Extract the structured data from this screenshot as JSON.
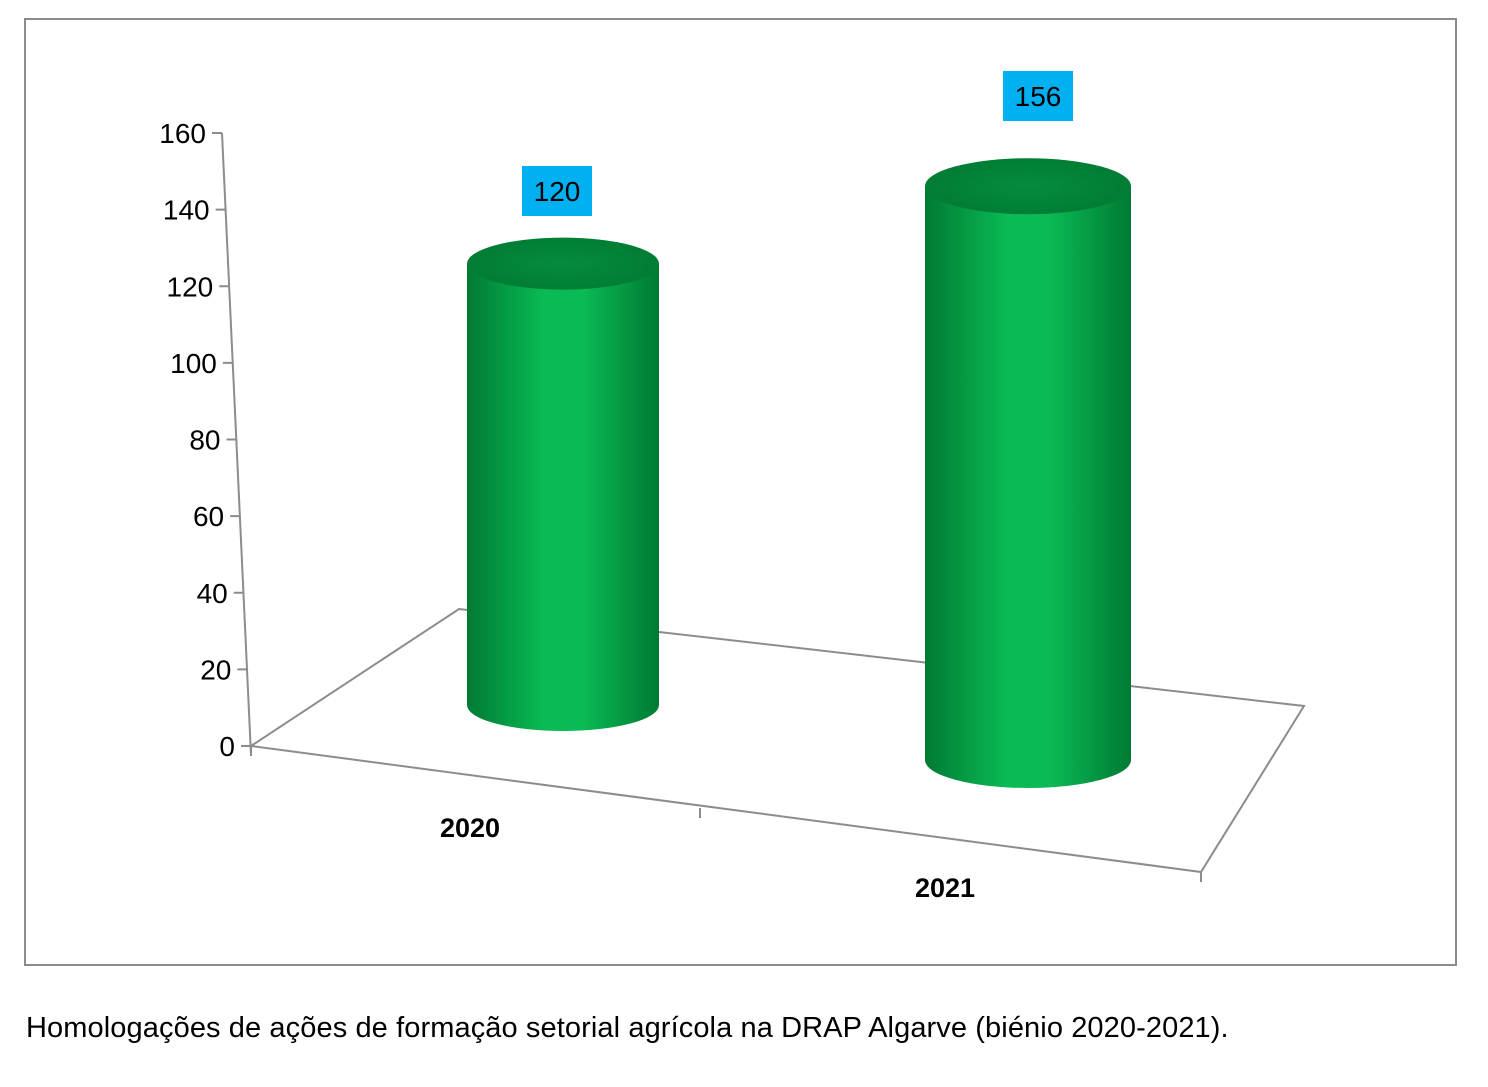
{
  "caption": "Homologações de ações de formação setorial agrícola na DRAP Algarve (biénio 2020-2021).",
  "colors": {
    "bar_light": "#0abb55",
    "bar_dark": "#007a33",
    "bar_top": "#058c3c",
    "label_bg": "#00b0f0",
    "axis": "#8c8c8c",
    "frame": "#8c8c8c"
  },
  "chart_data": {
    "type": "bar",
    "style": "3d-cylinder",
    "categories": [
      "2020",
      "2021"
    ],
    "values": [
      120,
      156
    ],
    "data_labels": [
      "120",
      "156"
    ],
    "y_ticks": [
      "0",
      "20",
      "40",
      "60",
      "80",
      "100",
      "120",
      "140",
      "160"
    ],
    "ylim": [
      0,
      160
    ],
    "title": "",
    "xlabel": "",
    "ylabel": "",
    "grid": false,
    "legend": "none"
  }
}
